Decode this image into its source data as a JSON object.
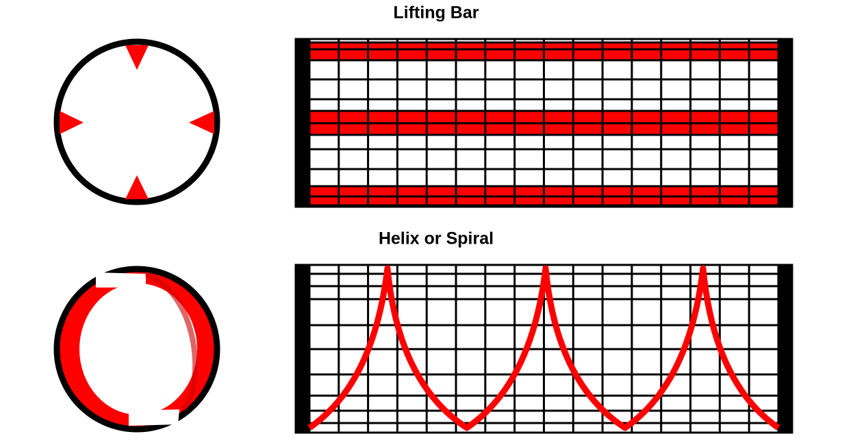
{
  "sections": [
    {
      "title": "Lifting Bar"
    },
    {
      "title": "Helix or Spiral"
    }
  ]
}
